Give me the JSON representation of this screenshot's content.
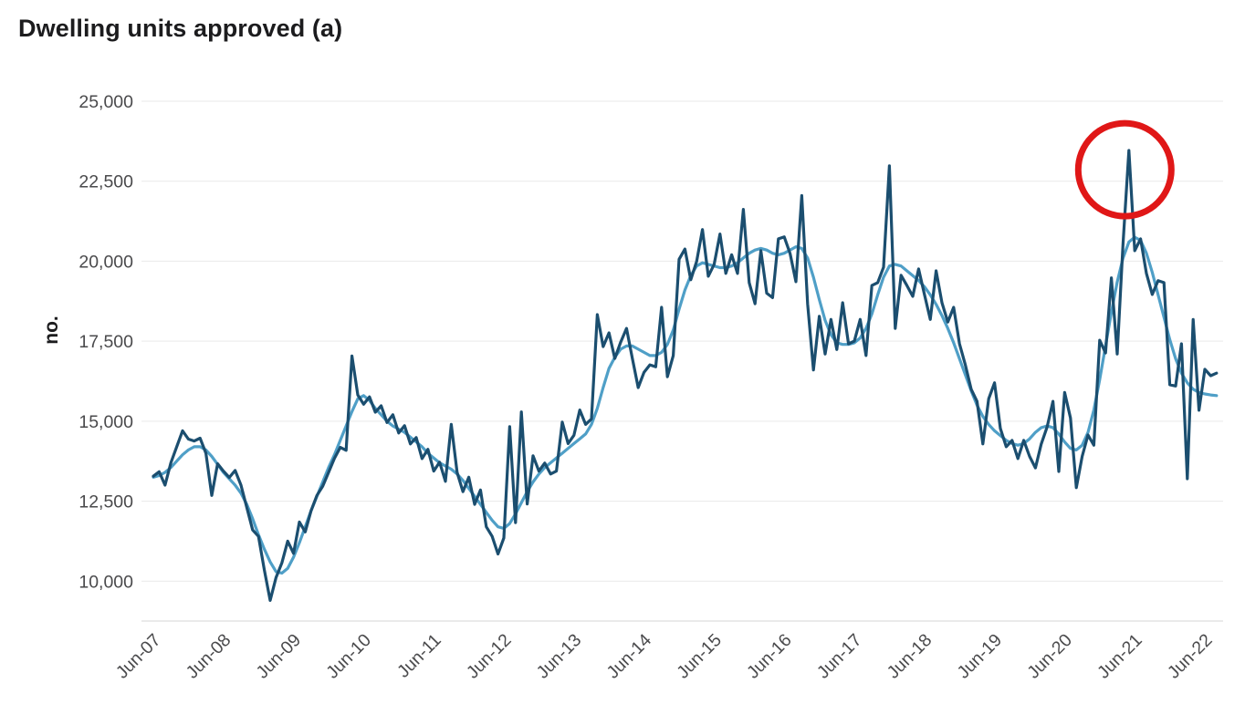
{
  "page": {
    "title": "Dwelling units approved (a)"
  },
  "chart_data": {
    "type": "line",
    "title": "Dwelling units approved (a)",
    "xlabel": "",
    "ylabel": "no.",
    "ylim": [
      10000,
      25000
    ],
    "grid": "horizontal",
    "legend_position": "none",
    "y_ticks": {
      "labels": [
        "25,000",
        "22,500",
        "20,000",
        "17,500",
        "15,000",
        "12,500",
        "10,000"
      ],
      "values": [
        25000,
        22500,
        20000,
        17500,
        15000,
        12500,
        10000
      ]
    },
    "x_ticks": {
      "labels": [
        "Jun-07",
        "Jun-08",
        "Jun-09",
        "Jun-10",
        "Jun-11",
        "Jun-12",
        "Jun-13",
        "Jun-14",
        "Jun-15",
        "Jun-16",
        "Jun-17",
        "Jun-18",
        "Jun-19",
        "Jun-20",
        "Jun-21",
        "Jun-22"
      ],
      "months_between_ticks": 12
    },
    "x_start_label": "Jun-07",
    "x_end_label": "Aug-22",
    "frequency": "monthly",
    "series": [
      {
        "name": "monthly-dark-navy-line",
        "color": "#1b4e6f",
        "stroke_width": 3.2,
        "values": [
          13280,
          13420,
          13000,
          13700,
          14200,
          14700,
          14440,
          14380,
          14470,
          14000,
          12680,
          13670,
          13440,
          13240,
          13460,
          13000,
          12300,
          11600,
          11400,
          10350,
          9400,
          10110,
          10570,
          11250,
          10870,
          11850,
          11540,
          12200,
          12680,
          12970,
          13400,
          13840,
          14180,
          14090,
          17040,
          15820,
          15530,
          15760,
          15280,
          15480,
          14960,
          15200,
          14630,
          14860,
          14290,
          14490,
          13830,
          14120,
          13440,
          13720,
          13120,
          14900,
          13400,
          12800,
          13250,
          12400,
          12850,
          11700,
          11400,
          10850,
          11350,
          14830,
          11830,
          15290,
          12410,
          13920,
          13440,
          13690,
          13350,
          13440,
          14970,
          14300,
          14560,
          15350,
          14900,
          15070,
          18330,
          17330,
          17760,
          16960,
          17470,
          17900,
          16960,
          16050,
          16530,
          16760,
          16700,
          18560,
          16390,
          17050,
          20060,
          20380,
          19420,
          19990,
          20990,
          19530,
          19900,
          20850,
          19620,
          20200,
          19620,
          21620,
          19330,
          18670,
          20330,
          19000,
          18860,
          20700,
          20760,
          20240,
          19360,
          22050,
          18670,
          16600,
          18280,
          17100,
          18180,
          17240,
          18700,
          17420,
          17500,
          18180,
          17050,
          19240,
          19330,
          19810,
          22980,
          17900,
          19560,
          19240,
          18900,
          19760,
          18960,
          18180,
          19700,
          18700,
          18100,
          18560,
          17420,
          16760,
          16000,
          15620,
          14290,
          15700,
          16200,
          14770,
          14200,
          14400,
          13830,
          14400,
          13900,
          13540,
          14290,
          14820,
          15620,
          13430,
          15900,
          15100,
          12920,
          13900,
          14570,
          14250,
          17530,
          17130,
          19480,
          17100,
          20560,
          23460,
          20330,
          20700,
          19620,
          18960,
          19390,
          19330,
          16140,
          16100,
          17420,
          13200,
          18180,
          15340,
          16620,
          16420,
          16500
        ]
      },
      {
        "name": "trend-light-blue-line",
        "color": "#4f9fc7",
        "stroke_width": 3.2,
        "values": [
          13250,
          13300,
          13400,
          13550,
          13750,
          13950,
          14100,
          14200,
          14200,
          14100,
          13900,
          13650,
          13400,
          13200,
          13000,
          12750,
          12400,
          11950,
          11450,
          11000,
          10600,
          10300,
          10250,
          10400,
          10750,
          11200,
          11700,
          12200,
          12650,
          13100,
          13550,
          13950,
          14400,
          14850,
          15300,
          15700,
          15800,
          15650,
          15400,
          15200,
          15000,
          14850,
          14750,
          14650,
          14500,
          14350,
          14200,
          14000,
          13850,
          13700,
          13600,
          13500,
          13350,
          13150,
          12900,
          12650,
          12400,
          12150,
          11900,
          11700,
          11650,
          11800,
          12100,
          12450,
          12800,
          13100,
          13350,
          13550,
          13700,
          13850,
          14000,
          14150,
          14300,
          14450,
          14600,
          14900,
          15400,
          16050,
          16650,
          17000,
          17250,
          17350,
          17350,
          17250,
          17150,
          17050,
          17050,
          17150,
          17400,
          17850,
          18500,
          19100,
          19550,
          19850,
          19950,
          19900,
          19850,
          19800,
          19800,
          19850,
          19950,
          20100,
          20250,
          20350,
          20400,
          20350,
          20250,
          20200,
          20250,
          20350,
          20450,
          20400,
          20100,
          19500,
          18800,
          18150,
          17700,
          17450,
          17400,
          17400,
          17450,
          17600,
          17900,
          18350,
          18950,
          19500,
          19850,
          19900,
          19850,
          19700,
          19550,
          19400,
          19200,
          18950,
          18650,
          18300,
          17900,
          17450,
          16950,
          16450,
          15950,
          15500,
          15150,
          14900,
          14700,
          14550,
          14400,
          14300,
          14250,
          14300,
          14450,
          14650,
          14800,
          14850,
          14800,
          14600,
          14350,
          14150,
          14100,
          14250,
          14650,
          15350,
          16300,
          17350,
          18400,
          19350,
          20100,
          20600,
          20750,
          20650,
          20250,
          19650,
          18950,
          18250,
          17550,
          16950,
          16500,
          16200,
          16000,
          15900,
          15850,
          15820,
          15800
        ]
      }
    ],
    "annotation": {
      "shape": "circle",
      "description": "red circle highlighting the 2021 peak",
      "color": "#e01717",
      "month_index": 166.3,
      "value": 22860,
      "radius_px": 51,
      "stroke_width": 7
    }
  }
}
